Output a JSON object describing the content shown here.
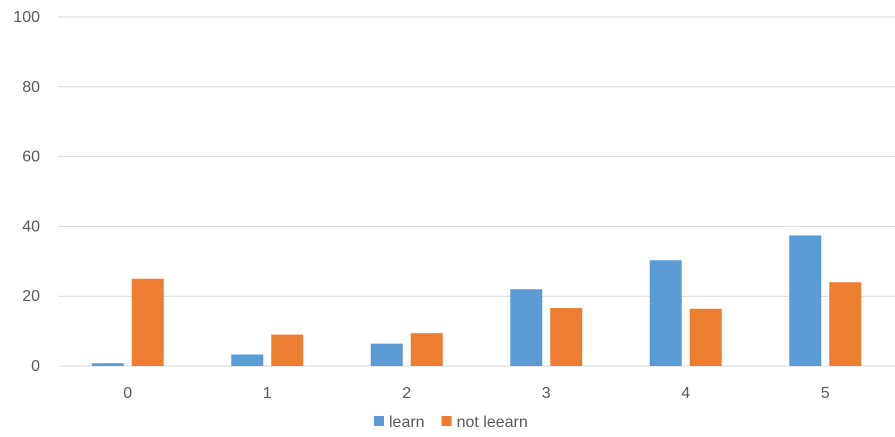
{
  "chart_data": {
    "type": "bar",
    "categories": [
      "0",
      "1",
      "2",
      "3",
      "4",
      "5"
    ],
    "series": [
      {
        "name": "learn",
        "color": "#5B9BD5",
        "values": [
          0.8,
          3.3,
          6.4,
          22.0,
          30.3,
          37.4
        ]
      },
      {
        "name": "not leearn",
        "color": "#ED7D31",
        "values": [
          25.0,
          9.0,
          9.4,
          16.6,
          16.4,
          24.0
        ]
      }
    ],
    "yticks": [
      "0",
      "20",
      "40",
      "60",
      "80",
      "100"
    ],
    "ylim": [
      0,
      100
    ],
    "grid": true,
    "legend_position": "bottom",
    "gridline_color": "#D9D9D9"
  }
}
